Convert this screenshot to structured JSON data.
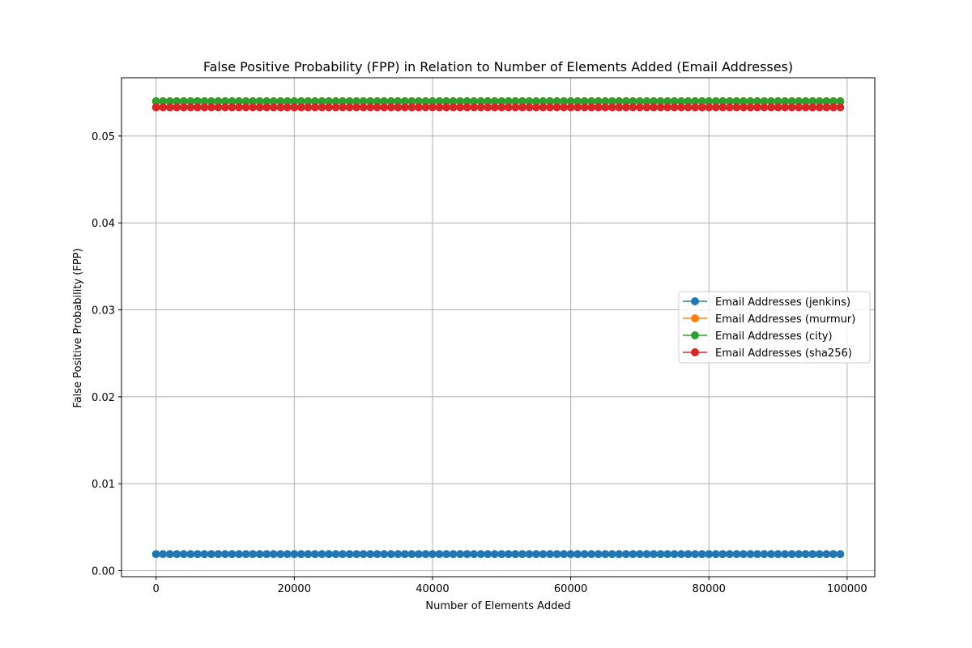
{
  "chart_data": {
    "type": "line",
    "title": "False Positive Probability (FPP) in Relation to Number of Elements Added (Email Addresses)",
    "xlabel": "Number of Elements Added",
    "ylabel": "False Positive Probability (FPP)",
    "xlim": [
      -5000,
      104000
    ],
    "ylim": [
      -0.0007,
      0.0567
    ],
    "x_ticks": [
      0,
      20000,
      40000,
      60000,
      80000,
      100000
    ],
    "x_tick_labels": [
      "0",
      "20000",
      "40000",
      "60000",
      "80000",
      "100000"
    ],
    "y_ticks": [
      0.0,
      0.01,
      0.02,
      0.03,
      0.04,
      0.05
    ],
    "y_tick_labels": [
      "0.00",
      "0.01",
      "0.02",
      "0.03",
      "0.04",
      "0.05"
    ],
    "grid": true,
    "legend_position": "center-right",
    "x": {
      "start": 0,
      "step": 1000,
      "count": 100
    },
    "series": [
      {
        "name": "Email Addresses (jenkins)",
        "color": "#1f77b4",
        "value": 0.0019
      },
      {
        "name": "Email Addresses (murmur)",
        "color": "#ff7f0e",
        "value": 0.054
      },
      {
        "name": "Email Addresses (city)",
        "color": "#2ca02c",
        "value": 0.054
      },
      {
        "name": "Email Addresses (sha256)",
        "color": "#d62728",
        "value": 0.0533
      }
    ]
  }
}
